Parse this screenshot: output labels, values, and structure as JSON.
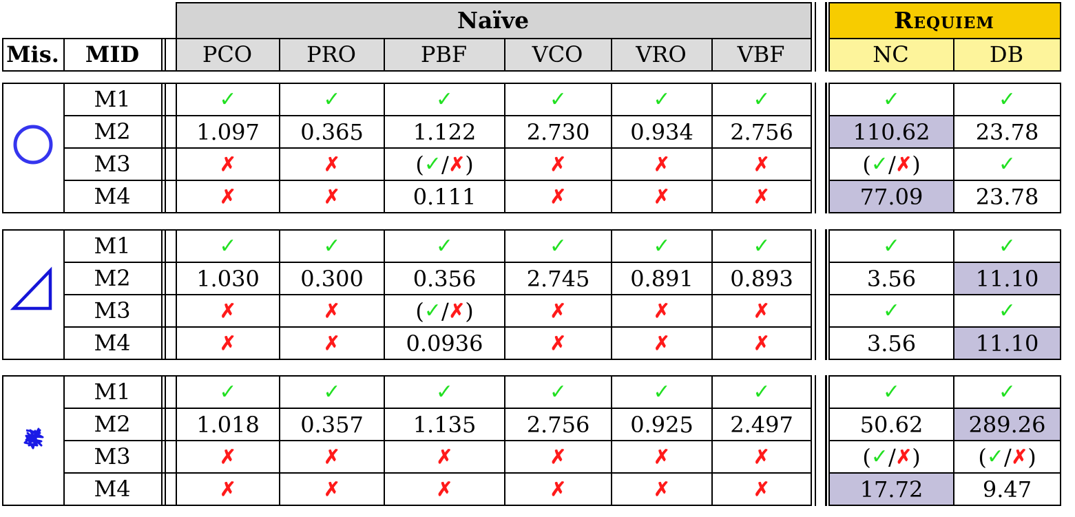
{
  "colors": {
    "naive_header": "#d4d4d4",
    "naive_subheader": "#dcdcdc",
    "requiem_header": "#f7cc00",
    "requiem_subheader": "#fdf49b",
    "highlight": "#c4c0dc",
    "ok": "#22e022",
    "no": "#ff1a1a",
    "mission_icon": "#3535ee"
  },
  "header": {
    "group_naive": "Naïve",
    "group_requiem": "Requiem",
    "col_mission": "Mis.",
    "col_mid": "MID",
    "naive_cols": [
      "PCO",
      "PRO",
      "PBF",
      "VCO",
      "VRO",
      "VBF"
    ],
    "requiem_cols": [
      "NC",
      "DB"
    ]
  },
  "legend_symbols": {
    "ok": "✓",
    "no": "✗",
    "partial_open": "(",
    "partial_sep": "/",
    "partial_close": ")"
  },
  "groups": [
    {
      "mission_icon": "circle-icon",
      "rows": [
        {
          "mid": "M1",
          "cells": [
            {
              "mark": "ok"
            },
            {
              "mark": "ok"
            },
            {
              "mark": "ok"
            },
            {
              "mark": "ok"
            },
            {
              "mark": "ok"
            },
            {
              "mark": "ok"
            },
            {
              "mark": "ok"
            },
            {
              "mark": "ok"
            }
          ]
        },
        {
          "mid": "M2",
          "cells": [
            {
              "text": "1.097"
            },
            {
              "text": "0.365"
            },
            {
              "text": "1.122"
            },
            {
              "text": "2.730"
            },
            {
              "text": "0.934"
            },
            {
              "text": "2.756"
            },
            {
              "text": "110.62",
              "hl": true
            },
            {
              "text": "23.78"
            }
          ]
        },
        {
          "mid": "M3",
          "cells": [
            {
              "mark": "no"
            },
            {
              "mark": "no"
            },
            {
              "mark": "partial"
            },
            {
              "mark": "no"
            },
            {
              "mark": "no"
            },
            {
              "mark": "no"
            },
            {
              "mark": "partial"
            },
            {
              "mark": "ok"
            }
          ]
        },
        {
          "mid": "M4",
          "cells": [
            {
              "mark": "no"
            },
            {
              "mark": "no"
            },
            {
              "text": "0.111"
            },
            {
              "mark": "no"
            },
            {
              "mark": "no"
            },
            {
              "mark": "no"
            },
            {
              "text": "77.09",
              "hl": true
            },
            {
              "text": "23.78"
            }
          ]
        }
      ]
    },
    {
      "mission_icon": "triangle-icon",
      "rows": [
        {
          "mid": "M1",
          "cells": [
            {
              "mark": "ok"
            },
            {
              "mark": "ok"
            },
            {
              "mark": "ok"
            },
            {
              "mark": "ok"
            },
            {
              "mark": "ok"
            },
            {
              "mark": "ok"
            },
            {
              "mark": "ok"
            },
            {
              "mark": "ok"
            }
          ]
        },
        {
          "mid": "M2",
          "cells": [
            {
              "text": "1.030"
            },
            {
              "text": "0.300"
            },
            {
              "text": "0.356"
            },
            {
              "text": "2.745"
            },
            {
              "text": "0.891"
            },
            {
              "text": "0.893"
            },
            {
              "text": "3.56"
            },
            {
              "text": "11.10",
              "hl": true
            }
          ]
        },
        {
          "mid": "M3",
          "cells": [
            {
              "mark": "no"
            },
            {
              "mark": "no"
            },
            {
              "mark": "partial"
            },
            {
              "mark": "no"
            },
            {
              "mark": "no"
            },
            {
              "mark": "no"
            },
            {
              "mark": "ok"
            },
            {
              "mark": "ok"
            }
          ]
        },
        {
          "mid": "M4",
          "cells": [
            {
              "mark": "no"
            },
            {
              "mark": "no"
            },
            {
              "text": "0.0936"
            },
            {
              "mark": "no"
            },
            {
              "mark": "no"
            },
            {
              "mark": "no"
            },
            {
              "text": "3.56"
            },
            {
              "text": "11.10",
              "hl": true
            }
          ]
        }
      ]
    },
    {
      "mission_icon": "scribble-path-icon",
      "rows": [
        {
          "mid": "M1",
          "cells": [
            {
              "mark": "ok"
            },
            {
              "mark": "ok"
            },
            {
              "mark": "ok"
            },
            {
              "mark": "ok"
            },
            {
              "mark": "ok"
            },
            {
              "mark": "ok"
            },
            {
              "mark": "ok"
            },
            {
              "mark": "ok"
            }
          ]
        },
        {
          "mid": "M2",
          "cells": [
            {
              "text": "1.018"
            },
            {
              "text": "0.357"
            },
            {
              "text": "1.135"
            },
            {
              "text": "2.756"
            },
            {
              "text": "0.925"
            },
            {
              "text": "2.497"
            },
            {
              "text": "50.62"
            },
            {
              "text": "289.26",
              "hl": true
            }
          ]
        },
        {
          "mid": "M3",
          "cells": [
            {
              "mark": "no"
            },
            {
              "mark": "no"
            },
            {
              "mark": "no"
            },
            {
              "mark": "no"
            },
            {
              "mark": "no"
            },
            {
              "mark": "no"
            },
            {
              "mark": "partial"
            },
            {
              "mark": "partial"
            }
          ]
        },
        {
          "mid": "M4",
          "cells": [
            {
              "mark": "no"
            },
            {
              "mark": "no"
            },
            {
              "mark": "no"
            },
            {
              "mark": "no"
            },
            {
              "mark": "no"
            },
            {
              "mark": "no"
            },
            {
              "text": "17.72",
              "hl": true
            },
            {
              "text": "9.47"
            }
          ]
        }
      ]
    }
  ]
}
